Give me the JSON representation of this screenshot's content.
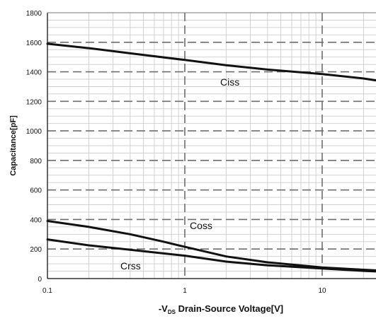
{
  "chart_data": {
    "type": "line",
    "xscale": "log",
    "yscale": "linear",
    "xlim": [
      0.1,
      30
    ],
    "ylim": [
      0,
      1800
    ],
    "xticks": [
      {
        "value": 0.1,
        "label": "0.1"
      },
      {
        "value": 1,
        "label": "1"
      },
      {
        "value": 10,
        "label": "10"
      }
    ],
    "yticks": [
      {
        "value": 0,
        "label": "0"
      },
      {
        "value": 200,
        "label": "200"
      },
      {
        "value": 400,
        "label": "400"
      },
      {
        "value": 600,
        "label": "600"
      },
      {
        "value": 800,
        "label": "800"
      },
      {
        "value": 1000,
        "label": "1000"
      },
      {
        "value": 1200,
        "label": "1200"
      },
      {
        "value": 1400,
        "label": "1400"
      },
      {
        "value": 1600,
        "label": "1600"
      },
      {
        "value": 1800,
        "label": "1800"
      }
    ],
    "xlabel_prefix": "-V",
    "xlabel_sub": "DS",
    "xlabel_rest": " Drain-Source Voltage[V]",
    "ylabel": "Capacitance[pF]",
    "grid": true,
    "series": [
      {
        "name": "Ciss",
        "color": "#111111",
        "x": [
          0.1,
          0.2,
          0.4,
          1,
          2,
          4,
          10,
          20,
          30
        ],
        "y": [
          1590,
          1560,
          1525,
          1480,
          1445,
          1415,
          1385,
          1355,
          1330
        ]
      },
      {
        "name": "Coss",
        "color": "#111111",
        "x": [
          0.1,
          0.2,
          0.4,
          0.7,
          1,
          2,
          4,
          10,
          20,
          30
        ],
        "y": [
          390,
          350,
          300,
          250,
          215,
          150,
          110,
          75,
          60,
          52
        ]
      },
      {
        "name": "Crss",
        "color": "#111111",
        "x": [
          0.1,
          0.2,
          0.4,
          1,
          2,
          4,
          10,
          20,
          30
        ],
        "y": [
          265,
          225,
          195,
          155,
          115,
          90,
          68,
          52,
          45
        ]
      }
    ]
  }
}
